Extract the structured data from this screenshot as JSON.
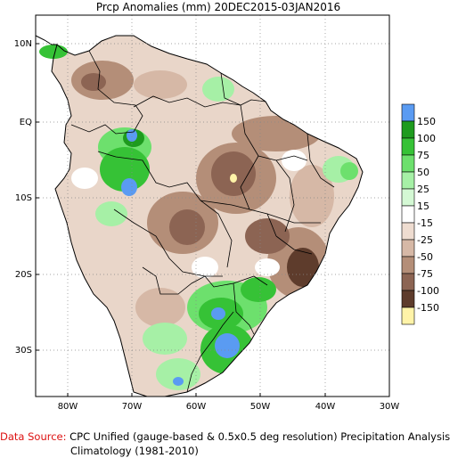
{
  "title": "Prcp Anomalies (mm) 20DEC2015-03JAN2016",
  "lat_labels": [
    "10N",
    "EQ",
    "10S",
    "20S",
    "30S"
  ],
  "lon_labels": [
    "80W",
    "70W",
    "60W",
    "50W",
    "40W",
    "30W"
  ],
  "colorbar": {
    "labels": [
      "150",
      "100",
      "75",
      "50",
      "25",
      "15",
      "-15",
      "-25",
      "-50",
      "-75",
      "-100",
      "-150"
    ],
    "colors": [
      "#5a9bf2",
      "#1e9b1e",
      "#36c236",
      "#6de06d",
      "#a6f0a6",
      "#d4f8d4",
      "#ffffff",
      "#eedcd0",
      "#d6b8a6",
      "#b48e78",
      "#8c6453",
      "#5e3c2c",
      "#fff3a8"
    ]
  },
  "footer": {
    "source_label": "Data Source:",
    "source_text": "CPC Unified (gauge-based & 0.5x0.5 deg resolution) Precipitation Analysis",
    "climatology": "Climatology (1981-2010)"
  }
}
